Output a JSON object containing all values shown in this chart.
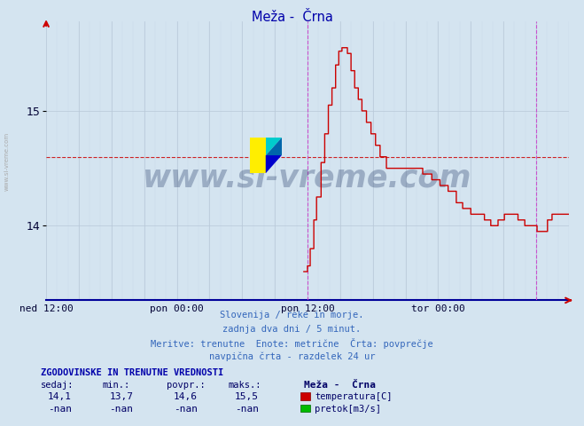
{
  "title": "Meža -  Črna",
  "background_color": "#d4e4f0",
  "plot_bg_color": "#d4e4f0",
  "line_color": "#cc0000",
  "vline_color": "#cc44cc",
  "hline_color": "#cc0000",
  "avg_value": 14.6,
  "ymin": 13.35,
  "ymax": 15.78,
  "yticks": [
    14.0,
    15.0
  ],
  "xtick_positions": [
    0,
    288,
    576,
    864
  ],
  "xtick_labels": [
    "ned 12:00",
    "pon 00:00",
    "pon 12:00",
    "tor 00:00"
  ],
  "total_points": 1152,
  "vline_positions": [
    576,
    1080
  ],
  "control_points": [
    [
      568,
      13.6
    ],
    [
      576,
      13.65
    ],
    [
      582,
      13.8
    ],
    [
      590,
      14.05
    ],
    [
      596,
      14.25
    ],
    [
      606,
      14.55
    ],
    [
      614,
      14.8
    ],
    [
      622,
      15.05
    ],
    [
      630,
      15.2
    ],
    [
      638,
      15.4
    ],
    [
      645,
      15.52
    ],
    [
      652,
      15.55
    ],
    [
      658,
      15.55
    ],
    [
      664,
      15.5
    ],
    [
      672,
      15.35
    ],
    [
      680,
      15.2
    ],
    [
      688,
      15.1
    ],
    [
      696,
      15.0
    ],
    [
      706,
      14.9
    ],
    [
      716,
      14.8
    ],
    [
      726,
      14.7
    ],
    [
      736,
      14.6
    ],
    [
      750,
      14.5
    ],
    [
      768,
      14.5
    ],
    [
      790,
      14.5
    ],
    [
      810,
      14.5
    ],
    [
      830,
      14.45
    ],
    [
      850,
      14.4
    ],
    [
      868,
      14.35
    ],
    [
      886,
      14.3
    ],
    [
      904,
      14.2
    ],
    [
      918,
      14.15
    ],
    [
      936,
      14.1
    ],
    [
      958,
      14.1
    ],
    [
      966,
      14.05
    ],
    [
      980,
      14.0
    ],
    [
      996,
      14.05
    ],
    [
      1010,
      14.1
    ],
    [
      1025,
      14.1
    ],
    [
      1040,
      14.05
    ],
    [
      1055,
      14.0
    ],
    [
      1070,
      14.0
    ],
    [
      1082,
      13.95
    ],
    [
      1095,
      13.95
    ],
    [
      1105,
      14.05
    ],
    [
      1115,
      14.1
    ],
    [
      1128,
      14.1
    ],
    [
      1140,
      14.1
    ],
    [
      1151,
      14.1
    ]
  ],
  "footer_lines": [
    "Slovenija / reke in morje.",
    "zadnja dva dni / 5 minut.",
    "Meritve: trenutne  Enote: metrične  Črta: povprečje",
    "navpična črta - razdelek 24 ur"
  ],
  "table_header": "ZGODOVINSKE IN TRENUTNE VREDNOSTI",
  "table_col_headers": [
    "sedaj:",
    "min.:",
    "povpr.:",
    "maks.:"
  ],
  "table_row1": [
    "14,1",
    "13,7",
    "14,6",
    "15,5"
  ],
  "table_row2": [
    "-nan",
    "-nan",
    "-nan",
    "-nan"
  ],
  "legend_station": "Meža -  Črna",
  "legend_label1": "temperatura[C]",
  "legend_color1": "#cc0000",
  "legend_label2": "pretok[m3/s]",
  "legend_color2": "#00bb00",
  "watermark": "www.si-vreme.com",
  "watermark_color": "#1a3060",
  "side_label": "www.si-vreme.com"
}
